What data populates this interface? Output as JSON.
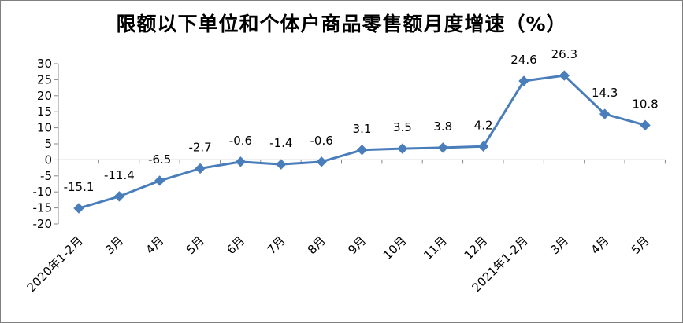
{
  "chart_data": {
    "type": "line",
    "title": "限额以下单位和个体户商品零售额月度增速（%）",
    "xlabel": "",
    "ylabel": "",
    "categories": [
      "2020年1-2月",
      "3月",
      "4月",
      "5月",
      "6月",
      "7月",
      "8月",
      "9月",
      "10月",
      "11月",
      "12月",
      "2021年1-2月",
      "3月",
      "4月",
      "5月"
    ],
    "series": [
      {
        "values": [
          -15.1,
          -11.4,
          -6.5,
          -2.7,
          -0.6,
          -1.4,
          -0.6,
          3.1,
          3.5,
          3.8,
          4.2,
          24.6,
          26.3,
          14.3,
          10.8
        ],
        "labels": [
          "-15.1",
          "-11.4",
          "-6.5",
          "-2.7",
          "-0.6",
          "-1.4",
          "-0.6",
          "3.1",
          "3.5",
          "3.8",
          "4.2",
          "24.6",
          "26.3",
          "14.3",
          "10.8"
        ],
        "color": "#4a7ebb",
        "marker": "diamond"
      }
    ],
    "ylim": [
      -20,
      30
    ],
    "yticks": [
      -20,
      -15,
      -10,
      -5,
      0,
      5,
      10,
      15,
      20,
      25,
      30
    ],
    "ytick_labels": [
      "-20",
      "-15",
      "-10",
      "-5",
      "0",
      "5",
      "10",
      "15",
      "20",
      "25",
      "30"
    ],
    "grid": false,
    "legend": "none"
  }
}
